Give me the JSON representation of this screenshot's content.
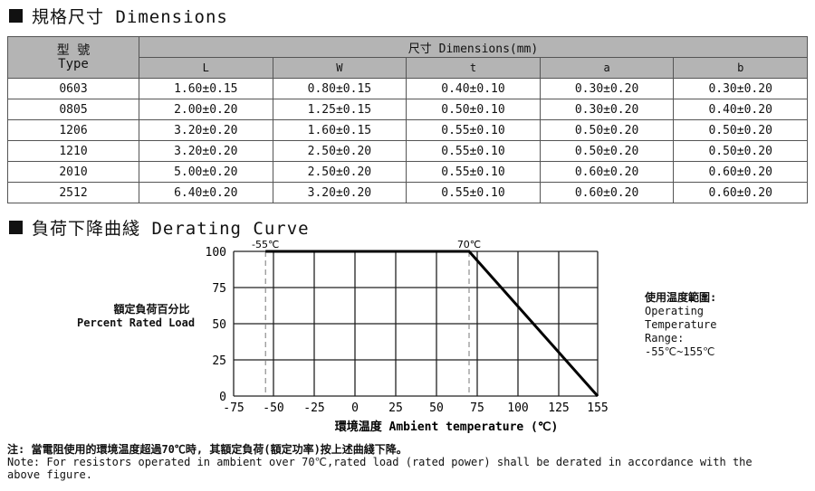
{
  "dimensions": {
    "title": "規格尺寸 Dimensions",
    "type_header_cn": "型 號",
    "type_header_en": "Type",
    "dim_header": "尺寸 Dimensions(mm)",
    "columns": [
      "L",
      "W",
      "t",
      "a",
      "b"
    ],
    "rows": [
      [
        "0603",
        "1.60±0.15",
        "0.80±0.15",
        "0.40±0.10",
        "0.30±0.20",
        "0.30±0.20"
      ],
      [
        "0805",
        "2.00±0.20",
        "1.25±0.15",
        "0.50±0.10",
        "0.30±0.20",
        "0.40±0.20"
      ],
      [
        "1206",
        "3.20±0.20",
        "1.60±0.15",
        "0.55±0.10",
        "0.50±0.20",
        "0.50±0.20"
      ],
      [
        "1210",
        "3.20±0.20",
        "2.50±0.20",
        "0.55±0.10",
        "0.50±0.20",
        "0.50±0.20"
      ],
      [
        "2010",
        "5.00±0.20",
        "2.50±0.20",
        "0.55±0.10",
        "0.60±0.20",
        "0.60±0.20"
      ],
      [
        "2512",
        "6.40±0.20",
        "3.20±0.20",
        "0.55±0.10",
        "0.60±0.20",
        "0.60±0.20"
      ]
    ]
  },
  "derating": {
    "title": "負荷下降曲綫 Derating Curve",
    "ylabel_cn": "額定負荷百分比",
    "ylabel_en": "Percent Rated Load",
    "side_cn": "使用温度範圍:",
    "side_en1": "Operating",
    "side_en2": "Temperature",
    "side_en3": "Range:",
    "side_range": "-55℃~155℃"
  },
  "chart_data": {
    "type": "line",
    "xlabel": "環境温度 Ambient temperature (℃)",
    "ylabel": "額定負荷百分比 Percent Rated Load",
    "xticks": [
      -75,
      -50,
      -25,
      0,
      25,
      50,
      75,
      100,
      125,
      155
    ],
    "yticks": [
      0,
      25,
      50,
      75,
      100
    ],
    "xlim": [
      -75,
      155
    ],
    "ylim": [
      0,
      100
    ],
    "grid": true,
    "x": [
      -55,
      70,
      155
    ],
    "y": [
      100,
      100,
      0
    ],
    "annotations": [
      {
        "x": -55,
        "text": "-55℃"
      },
      {
        "x": 70,
        "text": "70℃"
      }
    ]
  },
  "note": {
    "cn": "注: 當電阻使用的環境温度超過70℃時, 其額定負荷(額定功率)按上述曲綫下降。",
    "en1": "Note: For resistors operated in ambient over 70℃,rated  load (rated power) shall be derated in accordance with the",
    "en2": "above figure."
  }
}
